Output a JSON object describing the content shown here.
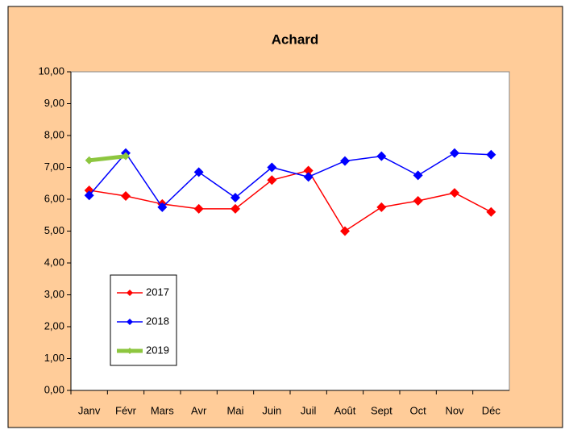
{
  "chart_data": {
    "type": "line",
    "title": "Achard",
    "categories": [
      "Janv",
      "Févr",
      "Mars",
      "Avr",
      "Mai",
      "Juin",
      "Juil",
      "Août",
      "Sept",
      "Oct",
      "Nov",
      "Déc"
    ],
    "series": [
      {
        "name": "2017",
        "color": "#ff0000",
        "values": [
          6.28,
          6.1,
          5.85,
          5.7,
          5.7,
          6.6,
          6.9,
          5.0,
          5.75,
          5.95,
          6.2,
          5.6
        ]
      },
      {
        "name": "2018",
        "color": "#0000ff",
        "values": [
          6.12,
          7.45,
          5.75,
          6.85,
          6.05,
          7.0,
          6.7,
          7.2,
          7.35,
          6.75,
          7.45,
          7.4
        ]
      },
      {
        "name": "2019",
        "color": "#8dc63f",
        "values": [
          7.22,
          7.35,
          null,
          null,
          null,
          null,
          null,
          null,
          null,
          null,
          null,
          null
        ]
      }
    ],
    "ylim": [
      0,
      10
    ],
    "yticks": [
      {
        "value": 0,
        "label": "0,00"
      },
      {
        "value": 1,
        "label": "1,00"
      },
      {
        "value": 2,
        "label": "2,00"
      },
      {
        "value": 3,
        "label": "3,00"
      },
      {
        "value": 4,
        "label": "4,00"
      },
      {
        "value": 5,
        "label": "5,00"
      },
      {
        "value": 6,
        "label": "6,00"
      },
      {
        "value": 7,
        "label": "7,00"
      },
      {
        "value": 8,
        "label": "8,00"
      },
      {
        "value": 9,
        "label": "9,00"
      },
      {
        "value": 10,
        "label": "10,00"
      }
    ],
    "grid": false,
    "legend": "lower-left"
  }
}
